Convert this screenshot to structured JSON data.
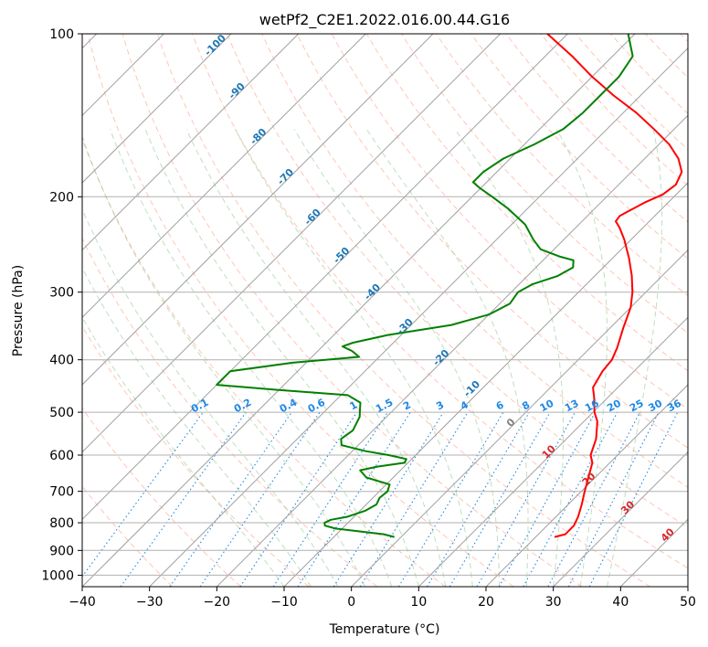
{
  "chart_data": {
    "type": "skew-t",
    "title": "wetPf2_C2E1.2022.016.00.44.G16",
    "xlabel": "Temperature (°C)",
    "ylabel": "Pressure (hPa)",
    "xlim": [
      -40,
      50
    ],
    "ylim": [
      1050,
      100
    ],
    "y_scale": "log",
    "x_ticks": [
      "−40",
      "−30",
      "−20",
      "−10",
      "0",
      "10",
      "20",
      "30",
      "40",
      "50"
    ],
    "y_ticks": [
      {
        "p": 100,
        "label": "100"
      },
      {
        "p": 200,
        "label": "200"
      },
      {
        "p": 300,
        "label": "300"
      },
      {
        "p": 400,
        "label": "400"
      },
      {
        "p": 500,
        "label": "500"
      },
      {
        "p": 600,
        "label": "600"
      },
      {
        "p": 700,
        "label": "700"
      },
      {
        "p": 800,
        "label": "800"
      },
      {
        "p": 900,
        "label": "900"
      },
      {
        "p": 1000,
        "label": "1000"
      }
    ],
    "grid": true,
    "colors": {
      "temperature": "#ff0000",
      "dewpoint": "#008000",
      "isotherm": "#a0a0a0",
      "dry_adiabat": "#ff8060",
      "moist_adiabat": "#80c080",
      "mixing_ratio": "#1f77b4",
      "iso_label_cold": "#1f77b4",
      "iso_label_zero": "#808080",
      "iso_label_warm": "#d62728"
    },
    "isotherm_labels": [
      {
        "t": -100,
        "label": "-100"
      },
      {
        "t": -90,
        "label": "-90"
      },
      {
        "t": -80,
        "label": "-80"
      },
      {
        "t": -70,
        "label": "-70"
      },
      {
        "t": -60,
        "label": "-60"
      },
      {
        "t": -50,
        "label": "-50"
      },
      {
        "t": -40,
        "label": "-40"
      },
      {
        "t": -30,
        "label": "-30"
      },
      {
        "t": -20,
        "label": "-20"
      },
      {
        "t": -10,
        "label": "-10"
      },
      {
        "t": 0,
        "label": "0"
      },
      {
        "t": 10,
        "label": "10"
      },
      {
        "t": 20,
        "label": "20"
      },
      {
        "t": 30,
        "label": "30"
      },
      {
        "t": 40,
        "label": "40"
      }
    ],
    "mixing_ratio_labels": [
      "0.1",
      "0.2",
      "0.4",
      "0.6",
      "1",
      "1.5",
      "2",
      "3",
      "4",
      "6",
      "8",
      "10",
      "13",
      "16",
      "20",
      "25",
      "30",
      "36"
    ],
    "series": [
      {
        "key": "temperature",
        "points": [
          [
            850,
            22.8
          ],
          [
            840,
            24.0
          ],
          [
            810,
            24.0
          ],
          [
            780,
            23.3
          ],
          [
            740,
            22.0
          ],
          [
            700,
            20.5
          ],
          [
            660,
            19.0
          ],
          [
            620,
            17.4
          ],
          [
            600,
            16.0
          ],
          [
            560,
            14.4
          ],
          [
            520,
            12.0
          ],
          [
            500,
            10.2
          ],
          [
            470,
            8.0
          ],
          [
            450,
            6.3
          ],
          [
            420,
            5.3
          ],
          [
            400,
            5.0
          ],
          [
            380,
            4.0
          ],
          [
            350,
            2.0
          ],
          [
            320,
            0.0
          ],
          [
            300,
            -2.0
          ],
          [
            280,
            -4.5
          ],
          [
            260,
            -7.5
          ],
          [
            240,
            -11.0
          ],
          [
            228,
            -13.5
          ],
          [
            222,
            -15.0
          ],
          [
            217,
            -15.2
          ],
          [
            212,
            -14.5
          ],
          [
            205,
            -13.5
          ],
          [
            198,
            -12.0
          ],
          [
            190,
            -11.5
          ],
          [
            180,
            -12.5
          ],
          [
            170,
            -15.0
          ],
          [
            160,
            -18.5
          ],
          [
            150,
            -23.0
          ],
          [
            140,
            -28.0
          ],
          [
            130,
            -34.0
          ],
          [
            120,
            -40.0
          ],
          [
            110,
            -46.0
          ],
          [
            100,
            -53.0
          ]
        ]
      },
      {
        "key": "dewpoint",
        "points": [
          [
            850,
            -1.0
          ],
          [
            840,
            -3.0
          ],
          [
            830,
            -7.0
          ],
          [
            820,
            -11.0
          ],
          [
            810,
            -13.0
          ],
          [
            800,
            -13.5
          ],
          [
            790,
            -13.0
          ],
          [
            780,
            -11.0
          ],
          [
            760,
            -9.2
          ],
          [
            740,
            -8.5
          ],
          [
            720,
            -9.0
          ],
          [
            700,
            -8.8
          ],
          [
            680,
            -9.5
          ],
          [
            660,
            -14.0
          ],
          [
            640,
            -16.0
          ],
          [
            630,
            -14.0
          ],
          [
            620,
            -10.5
          ],
          [
            610,
            -10.8
          ],
          [
            600,
            -14.0
          ],
          [
            590,
            -18.0
          ],
          [
            575,
            -22.5
          ],
          [
            560,
            -23.5
          ],
          [
            540,
            -23.0
          ],
          [
            510,
            -24.0
          ],
          [
            495,
            -25.0
          ],
          [
            480,
            -26.0
          ],
          [
            465,
            -29.0
          ],
          [
            455,
            -40.0
          ],
          [
            445,
            -50.0
          ],
          [
            420,
            -50.0
          ],
          [
            405,
            -42.0
          ],
          [
            395,
            -33.0
          ],
          [
            385,
            -35.0
          ],
          [
            378,
            -37.0
          ],
          [
            372,
            -36.0
          ],
          [
            360,
            -32.0
          ],
          [
            345,
            -24.0
          ],
          [
            330,
            -20.0
          ],
          [
            315,
            -18.5
          ],
          [
            300,
            -19.0
          ],
          [
            290,
            -18.0
          ],
          [
            280,
            -15.5
          ],
          [
            270,
            -14.5
          ],
          [
            262,
            -15.5
          ],
          [
            258,
            -18.0
          ],
          [
            250,
            -22.0
          ],
          [
            240,
            -24.5
          ],
          [
            225,
            -28.0
          ],
          [
            210,
            -33.0
          ],
          [
            200,
            -37.0
          ],
          [
            193,
            -40.0
          ],
          [
            188,
            -42.0
          ],
          [
            180,
            -42.0
          ],
          [
            170,
            -41.0
          ],
          [
            160,
            -38.5
          ],
          [
            150,
            -36.5
          ],
          [
            140,
            -36.0
          ],
          [
            130,
            -36.0
          ],
          [
            120,
            -36.0
          ],
          [
            110,
            -37.0
          ],
          [
            100,
            -41.0
          ]
        ]
      }
    ]
  }
}
